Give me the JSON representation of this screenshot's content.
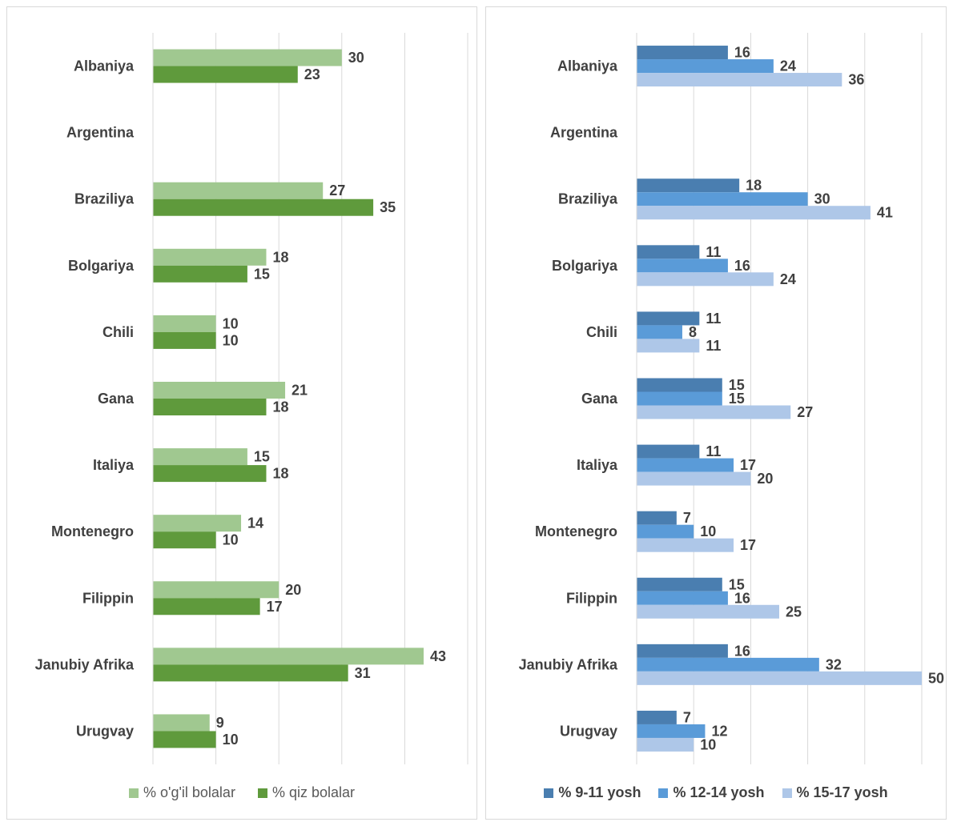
{
  "chart_data": [
    {
      "type": "bar",
      "orientation": "horizontal",
      "categories": [
        "Albaniya",
        "Argentina",
        "Braziliya",
        "Bolgariya",
        "Chili",
        "Gana",
        "Italiya",
        "Montenegro",
        "Filippin",
        "Janubiy Afrika",
        "Urugvay"
      ],
      "series": [
        {
          "name": "% o'g'il bolalar",
          "color": "#a0c890",
          "values": [
            30,
            null,
            27,
            18,
            10,
            21,
            15,
            14,
            20,
            43,
            9
          ]
        },
        {
          "name": "% qiz bolalar",
          "color": "#5f9a3c",
          "values": [
            23,
            null,
            35,
            15,
            10,
            18,
            18,
            10,
            17,
            31,
            10
          ]
        }
      ],
      "xlim": [
        0,
        50
      ],
      "grid": "vertical",
      "legend": "bottom"
    },
    {
      "type": "bar",
      "orientation": "horizontal",
      "categories": [
        "Albaniya",
        "Argentina",
        "Braziliya",
        "Bolgariya",
        "Chili",
        "Gana",
        "Italiya",
        "Montenegro",
        "Filippin",
        "Janubiy Afrika",
        "Urugvay"
      ],
      "series": [
        {
          "name": "% 9-11 yosh",
          "color": "#4a7eb0",
          "values": [
            16,
            null,
            18,
            11,
            11,
            15,
            11,
            7,
            15,
            16,
            7
          ]
        },
        {
          "name": "% 12-14 yosh",
          "color": "#5a9bd8",
          "values": [
            24,
            null,
            30,
            16,
            8,
            15,
            17,
            10,
            16,
            32,
            12
          ]
        },
        {
          "name": "% 15-17 yosh",
          "color": "#aec7e8",
          "values": [
            36,
            null,
            41,
            24,
            11,
            27,
            20,
            17,
            25,
            50,
            10
          ]
        }
      ],
      "xlim": [
        0,
        50
      ],
      "grid": "vertical",
      "legend": "bottom"
    }
  ]
}
